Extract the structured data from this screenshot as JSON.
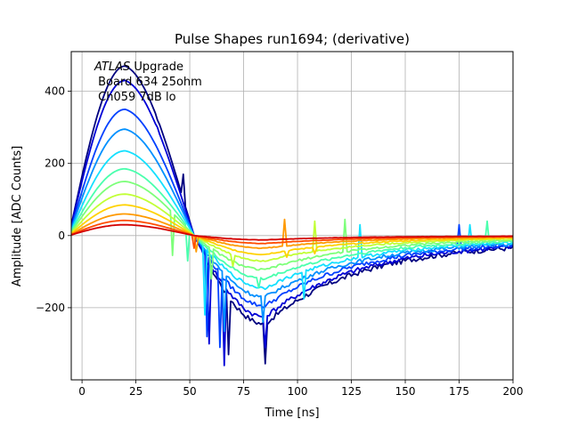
{
  "chart_data": {
    "type": "line",
    "title": "Pulse Shapes run1694; (derivative)",
    "xlabel": "Time [ns]",
    "ylabel": "Amplitude [ADC Counts]",
    "xlim": [
      -5,
      200
    ],
    "ylim": [
      -400,
      510
    ],
    "xticks": [
      0,
      25,
      50,
      75,
      100,
      125,
      150,
      175,
      200
    ],
    "yticks": [
      -200,
      0,
      200,
      400
    ],
    "xtick_labels": [
      "0",
      "25",
      "50",
      "75",
      "100",
      "125",
      "150",
      "175",
      "200"
    ],
    "ytick_labels": [
      "−200",
      "0",
      "200",
      "400"
    ],
    "grid": true,
    "annotation": {
      "line1_italic": "ATLAS",
      "line1_rest": " Upgrade",
      "line2": " Board 634 25ohm",
      "line3": " Ch059 7dB lo"
    },
    "series": [
      {
        "color": "#00007f",
        "peak": 470,
        "trough": -245,
        "spikes": [
          [
            85,
            -355
          ],
          [
            68,
            -330
          ],
          [
            35,
            320
          ],
          [
            47,
            170
          ]
        ]
      },
      {
        "color": "#0000d6",
        "peak": 430,
        "trough": -225,
        "spikes": [
          [
            66,
            -360
          ],
          [
            85,
            -310
          ],
          [
            59,
            -300
          ],
          [
            35,
            300
          ]
        ]
      },
      {
        "color": "#0040ff",
        "peak": 350,
        "trough": -195,
        "spikes": [
          [
            58,
            -280
          ],
          [
            64,
            -310
          ],
          [
            175,
            30
          ]
        ]
      },
      {
        "color": "#0090ff",
        "peak": 295,
        "trough": -170,
        "spikes": [
          [
            84,
            -240
          ],
          [
            66,
            -265
          ]
        ]
      },
      {
        "color": "#14e0ff",
        "peak": 235,
        "trough": -145,
        "spikes": [
          [
            57,
            -220
          ],
          [
            103,
            -175
          ],
          [
            129,
            30
          ],
          [
            180,
            30
          ]
        ]
      },
      {
        "color": "#4affad",
        "peak": 185,
        "trough": -120,
        "spikes": [
          [
            49,
            -70
          ],
          [
            82,
            -145
          ],
          [
            188,
            40
          ]
        ]
      },
      {
        "color": "#7dff7a",
        "peak": 150,
        "trough": -95,
        "spikes": [
          [
            42,
            -55
          ],
          [
            122,
            45
          ],
          [
            60,
            -120
          ]
        ]
      },
      {
        "color": "#c1ff36",
        "peak": 115,
        "trough": -70,
        "spikes": [
          [
            108,
            40
          ],
          [
            70,
            -85
          ]
        ]
      },
      {
        "color": "#ffd200",
        "peak": 85,
        "trough": -52,
        "spikes": [
          [
            108,
            -50
          ],
          [
            95,
            -60
          ]
        ]
      },
      {
        "color": "#ff9a00",
        "peak": 60,
        "trough": -35,
        "spikes": [
          [
            94,
            45
          ],
          [
            53,
            -45
          ]
        ]
      },
      {
        "color": "#ff4c00",
        "peak": 42,
        "trough": -22,
        "spikes": [
          [
            52,
            -35
          ]
        ]
      },
      {
        "color": "#d40000",
        "peak": 30,
        "trough": -12,
        "spikes": []
      }
    ]
  }
}
